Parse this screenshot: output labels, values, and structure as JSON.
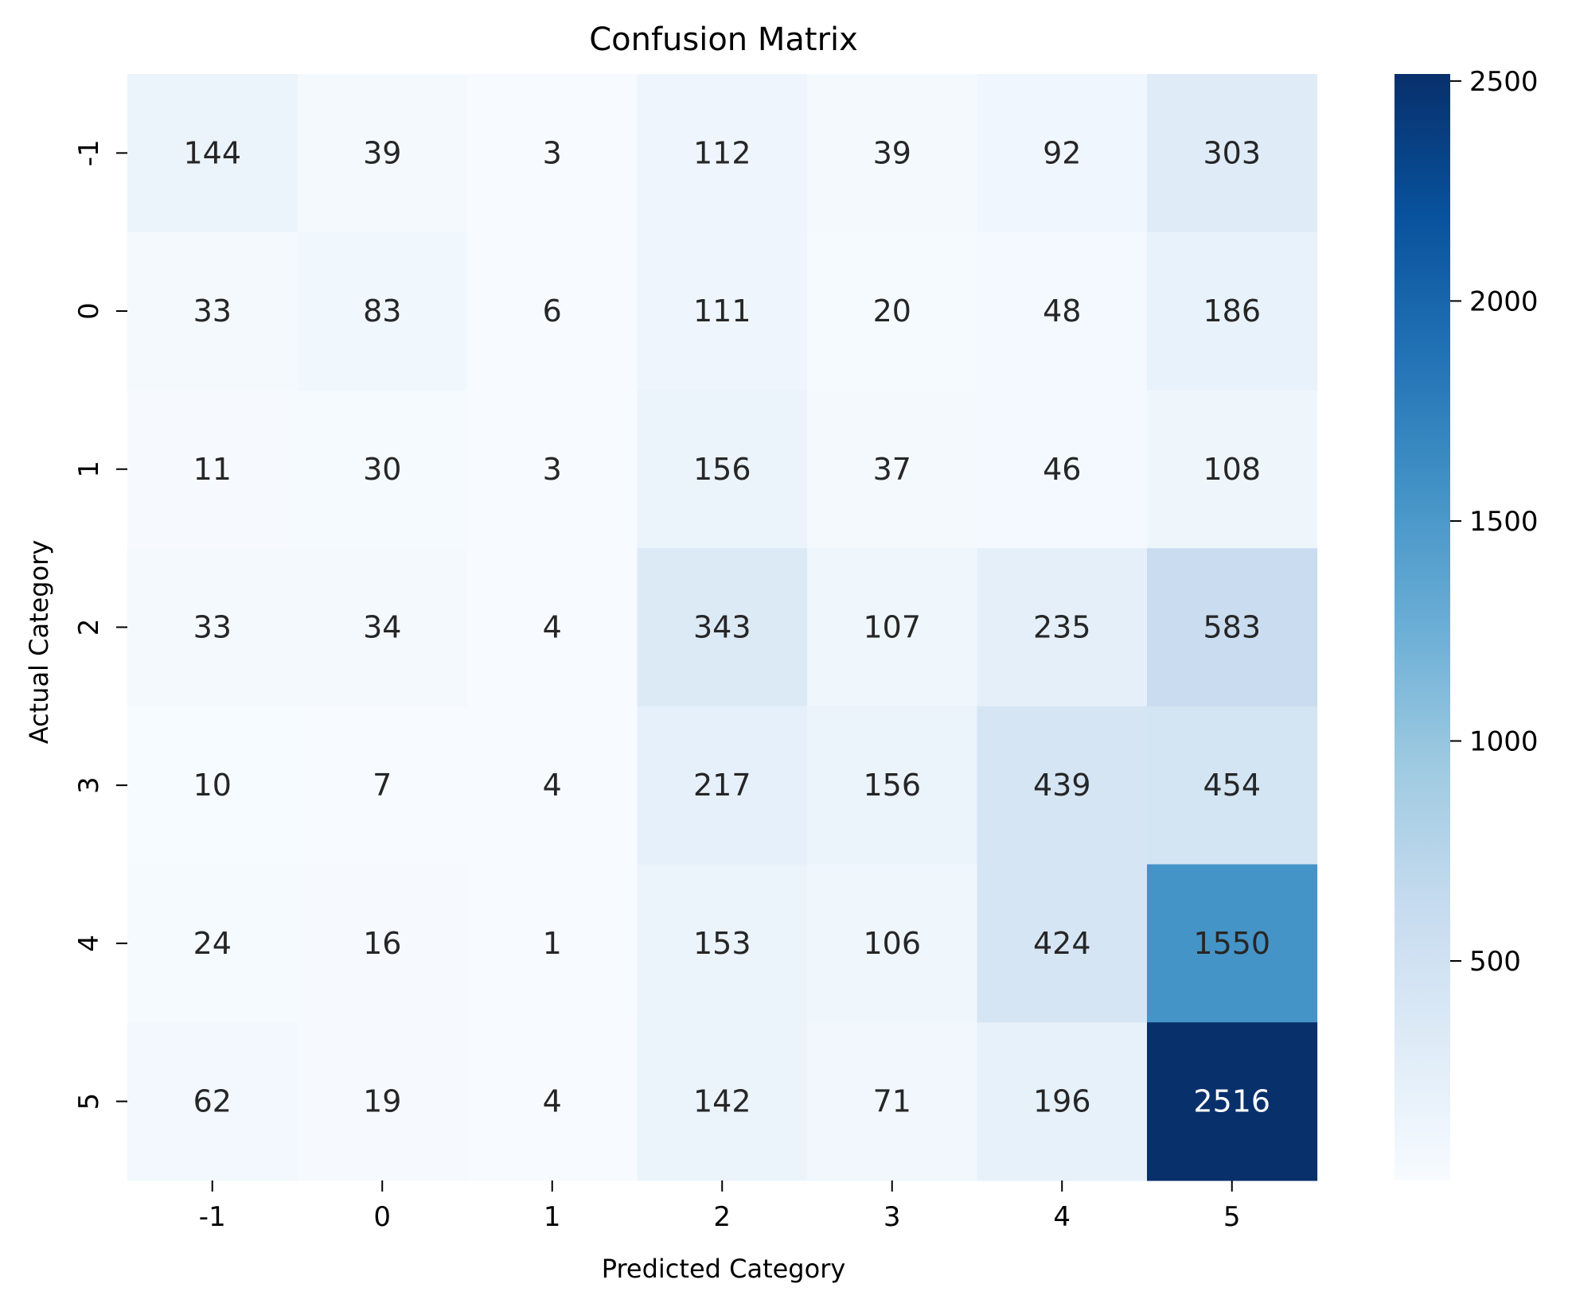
{
  "chart_data": {
    "type": "heatmap",
    "title": "Confusion Matrix",
    "xlabel": "Predicted Category",
    "ylabel": "Actual Category",
    "x_categories": [
      "-1",
      "0",
      "1",
      "2",
      "3",
      "4",
      "5"
    ],
    "y_categories": [
      "-1",
      "0",
      "1",
      "2",
      "3",
      "4",
      "5"
    ],
    "values": [
      [
        144,
        39,
        3,
        112,
        39,
        92,
        303
      ],
      [
        33,
        83,
        6,
        111,
        20,
        48,
        186
      ],
      [
        11,
        30,
        3,
        156,
        37,
        46,
        108
      ],
      [
        33,
        34,
        4,
        343,
        107,
        235,
        583
      ],
      [
        10,
        7,
        4,
        217,
        156,
        439,
        454
      ],
      [
        24,
        16,
        1,
        153,
        106,
        424,
        1550
      ],
      [
        62,
        19,
        4,
        142,
        71,
        196,
        2516
      ]
    ],
    "colormap": "Blues",
    "colorbar": {
      "min": 1,
      "max": 2516,
      "ticks": [
        500,
        1000,
        1500,
        2000,
        2500
      ],
      "tick_labels": [
        "500",
        "1000",
        "1500",
        "2000",
        "2500"
      ]
    },
    "annotations": true,
    "grid": false,
    "legend": "colorbar-right"
  }
}
